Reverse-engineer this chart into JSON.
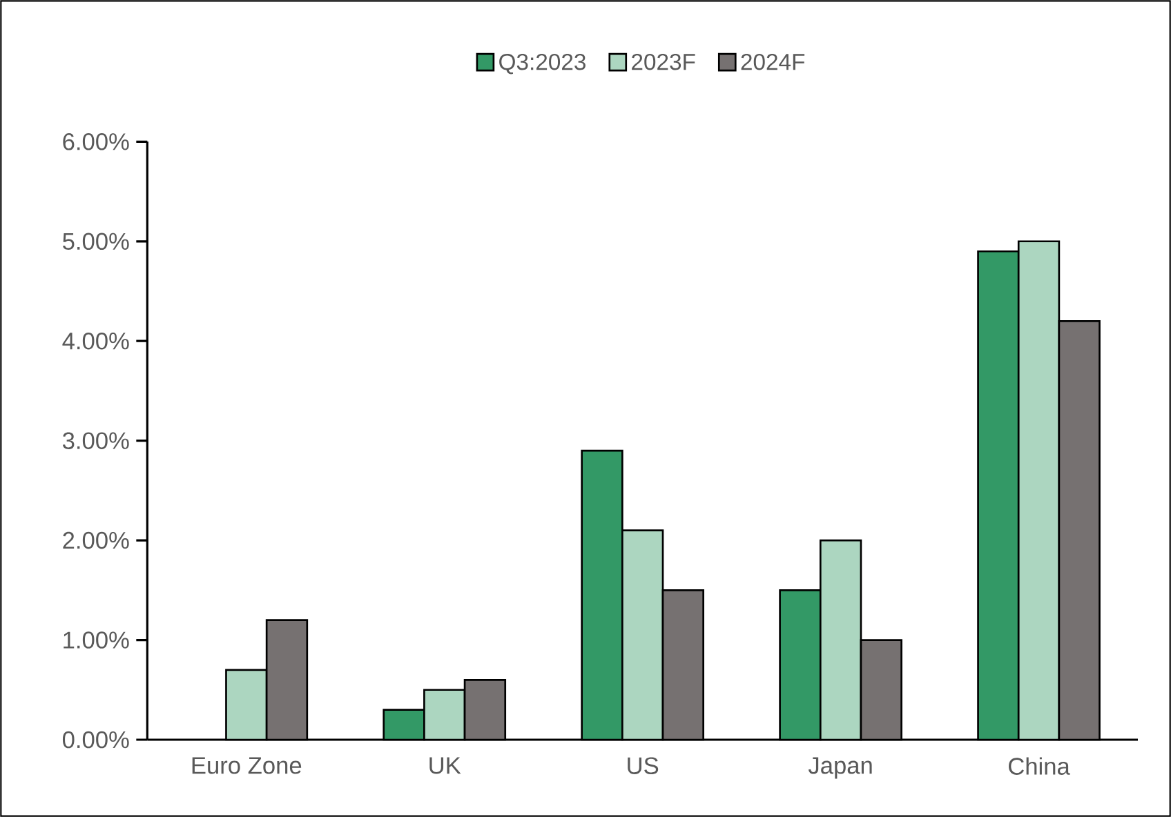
{
  "chart_data": {
    "type": "bar",
    "categories": [
      "Euro Zone",
      "UK",
      "US",
      "Japan",
      "China"
    ],
    "series": [
      {
        "name": "Q3:2023",
        "color": "#339966",
        "values": [
          null,
          0.3,
          2.9,
          1.5,
          4.9
        ]
      },
      {
        "name": "2023F",
        "color": "#acd6c0",
        "values": [
          0.7,
          0.5,
          2.1,
          2.0,
          5.0
        ]
      },
      {
        "name": "2024F",
        "color": "#767171",
        "values": [
          1.2,
          0.6,
          1.5,
          1.0,
          4.2
        ]
      }
    ],
    "ylim": [
      0,
      6
    ],
    "yticks": [
      {
        "value": 0,
        "label": "0.00%"
      },
      {
        "value": 1,
        "label": "1.00%"
      },
      {
        "value": 2,
        "label": "2.00%"
      },
      {
        "value": 3,
        "label": "3.00%"
      },
      {
        "value": 4,
        "label": "4.00%"
      },
      {
        "value": 5,
        "label": "5.00%"
      },
      {
        "value": 6,
        "label": "6.00%"
      }
    ],
    "grid": false,
    "legend": "top"
  }
}
